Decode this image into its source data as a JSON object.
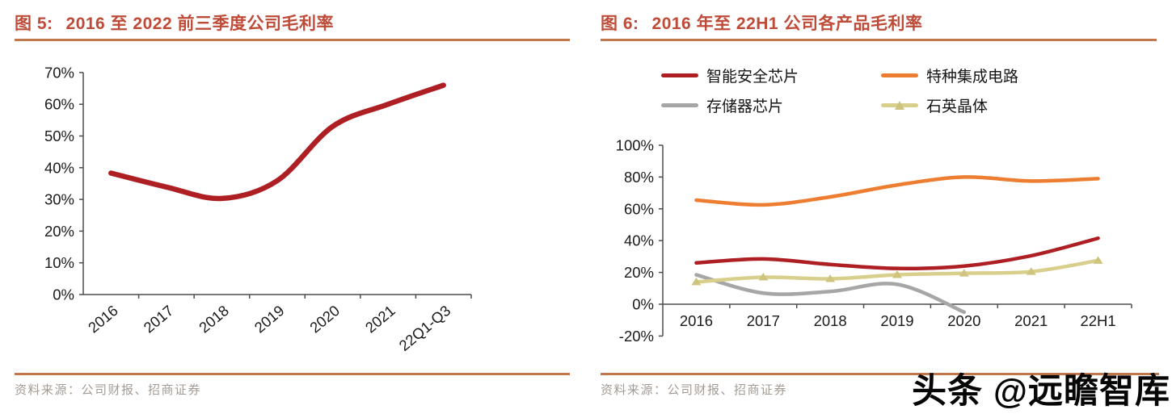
{
  "colors": {
    "title": "#BE4B38",
    "rule": "#C1764B",
    "axis": "#4D4D4D",
    "tick_label": "#1A1A1A",
    "source_text": "#A39B94",
    "watermark": "#060606"
  },
  "panels": [
    {
      "figure_label": "图 5:",
      "title": "2016 至 2022 前三季度公司毛利率",
      "source_label": "资料来源：",
      "source": "公司财报、招商证券"
    },
    {
      "figure_label": "图 6:",
      "title": "2016 年至 22H1 公司各产品毛利率",
      "source_label": "资料来源：",
      "source": "公司财报、招商证券"
    }
  ],
  "watermark": "头条 @远瞻智库",
  "chart_data": [
    {
      "type": "line",
      "title": "2016 至 2022 前三季度公司毛利率",
      "categories": [
        "2016",
        "2017",
        "2018",
        "2019",
        "2020",
        "2021",
        "22Q1-Q3"
      ],
      "series": [
        {
          "name": "公司毛利率",
          "color": "#AE1F23",
          "values": [
            38.3,
            33.9,
            30.3,
            35.9,
            53,
            60,
            66
          ]
        }
      ],
      "xlabel": "",
      "ylabel": "",
      "ylim": [
        0,
        70
      ],
      "ytick_step": 10,
      "ytick_format": "percent",
      "grid": false,
      "legend_position": "none",
      "x_labels_rotated": true
    },
    {
      "type": "line",
      "title": "2016 年至 22H1 公司各产品毛利率",
      "categories": [
        "2016",
        "2017",
        "2018",
        "2019",
        "2020",
        "2021",
        "22H1"
      ],
      "series": [
        {
          "name": "智能安全芯片",
          "color": "#AE1F23",
          "marker": "none",
          "values": [
            26,
            28.5,
            25,
            22.5,
            24,
            30.5,
            41.5
          ]
        },
        {
          "name": "特种集成电路",
          "color": "#ED7D31",
          "marker": "none",
          "values": [
            65.5,
            62.5,
            67.5,
            75,
            80,
            77.5,
            79
          ]
        },
        {
          "name": "存储器芯片",
          "color": "#A6A6A6",
          "marker": "none",
          "values": [
            18.5,
            7,
            8,
            12.5,
            -5,
            null,
            null
          ]
        },
        {
          "name": "石英晶体",
          "color": "#D9CF8D",
          "marker": "triangle",
          "marker_color": "#CFC47D",
          "values": [
            14,
            17,
            16,
            18.5,
            19.5,
            20.5,
            27.5
          ]
        }
      ],
      "xlabel": "",
      "ylabel": "",
      "ylim": [
        -20,
        100
      ],
      "ytick_step": 20,
      "ytick_format": "percent",
      "grid": false,
      "legend_position": "top",
      "x_labels_rotated": false
    }
  ]
}
